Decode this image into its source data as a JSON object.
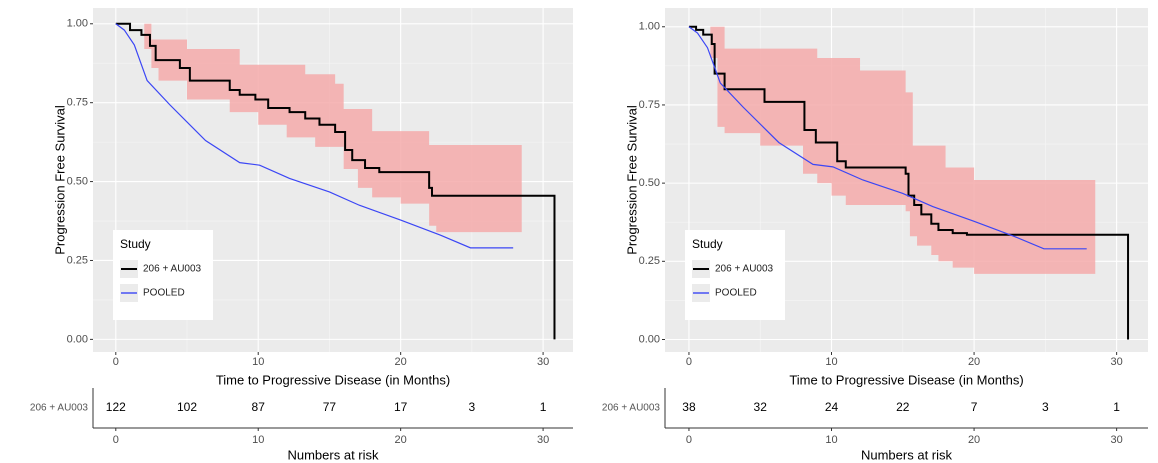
{
  "chart_data": [
    {
      "type": "km",
      "ylabel": "Progression Free Survival",
      "xlabel": "Time to Progressive Disease (in Months)",
      "xlim": [
        -1.6,
        32.1
      ],
      "ylim": [
        -0.04,
        1.05
      ],
      "xticks": [
        0,
        10,
        20,
        30
      ],
      "yticks": [
        {
          "value": 0,
          "label": "0.00"
        },
        {
          "value": 0.25,
          "label": "0.25"
        },
        {
          "value": 0.5,
          "label": "0.50"
        },
        {
          "value": 0.75,
          "label": "0.75"
        },
        {
          "value": 1,
          "label": "1.00"
        }
      ],
      "grid": true,
      "legend": {
        "title": "Study",
        "position": "bottom-left"
      },
      "ci_band": {
        "color": "#f4aaaa",
        "x": [
          0,
          2,
          2.5,
          3,
          4.5,
          5,
          8,
          8.7,
          10,
          12,
          13.3,
          14,
          15.4,
          16,
          17,
          18,
          20,
          22,
          22.5,
          28.5
        ],
        "upper": [
          1.0,
          1.0,
          0.95,
          0.95,
          0.95,
          0.92,
          0.92,
          0.87,
          0.87,
          0.87,
          0.84,
          0.84,
          0.81,
          0.73,
          0.73,
          0.66,
          0.66,
          0.616,
          0.616,
          0.616
        ],
        "lower": [
          1.0,
          0.92,
          0.86,
          0.82,
          0.82,
          0.76,
          0.72,
          0.72,
          0.68,
          0.64,
          0.64,
          0.61,
          0.61,
          0.54,
          0.48,
          0.45,
          0.43,
          0.36,
          0.34,
          0.34
        ]
      },
      "series": [
        {
          "name": "206 + AU003",
          "color": "#000000",
          "step": true,
          "x": [
            0,
            1,
            1.8,
            2.4,
            2.8,
            4.5,
            5.2,
            8.0,
            8.7,
            9.8,
            10.7,
            12.2,
            13.3,
            14.3,
            15.4,
            16.1,
            16.6,
            17.5,
            18.5,
            22.0,
            22.2,
            30.8
          ],
          "values": [
            1.0,
            0.98,
            0.965,
            0.93,
            0.885,
            0.86,
            0.82,
            0.79,
            0.775,
            0.76,
            0.733,
            0.72,
            0.7,
            0.68,
            0.657,
            0.6,
            0.568,
            0.543,
            0.53,
            0.48,
            0.455,
            0.0
          ]
        },
        {
          "name": "POOLED",
          "color": "#3b46f5",
          "step": false,
          "x": [
            0,
            0.6,
            1.3,
            2.2,
            3.8,
            6.3,
            8.7,
            10.1,
            12.2,
            15,
            17.1,
            20,
            22.8,
            24.9,
            27.9
          ],
          "values": [
            1.0,
            0.98,
            0.933,
            0.82,
            0.743,
            0.63,
            0.56,
            0.552,
            0.51,
            0.467,
            0.425,
            0.378,
            0.33,
            0.29,
            0.29
          ]
        }
      ],
      "risk_table": {
        "label": "206 + AU003",
        "times": [
          0,
          5,
          10,
          15,
          20,
          25,
          30
        ],
        "counts": [
          122,
          102,
          87,
          77,
          17,
          3,
          1
        ],
        "xticks": [
          0,
          10,
          20,
          30
        ],
        "xlabel": "Numbers at risk"
      }
    },
    {
      "type": "km",
      "ylabel": "Progression Free Survival",
      "xlabel": "Time to Progressive Disease (in Months)",
      "xlim": [
        -1.68,
        32.2
      ],
      "ylim": [
        -0.04,
        1.06
      ],
      "xticks": [
        0,
        10,
        20,
        30
      ],
      "yticks": [
        {
          "value": 0,
          "label": "0.00"
        },
        {
          "value": 0.25,
          "label": "0.25"
        },
        {
          "value": 0.5,
          "label": "0.50"
        },
        {
          "value": 0.75,
          "label": "0.75"
        },
        {
          "value": 1,
          "label": "1.00"
        }
      ],
      "grid": true,
      "legend": {
        "title": "Study",
        "position": "bottom-left"
      },
      "ci_band": {
        "color": "#f4aaaa",
        "x": [
          0,
          1.5,
          2,
          2.5,
          5,
          8,
          9,
          10,
          11,
          12,
          15.2,
          15.5,
          15.7,
          16,
          17,
          17.5,
          18,
          18.5,
          20,
          28.5
        ],
        "upper": [
          1.0,
          1.0,
          1.0,
          0.93,
          0.93,
          0.93,
          0.9,
          0.9,
          0.9,
          0.86,
          0.79,
          0.79,
          0.62,
          0.62,
          0.62,
          0.62,
          0.55,
          0.55,
          0.51,
          0.51
        ],
        "lower": [
          1.0,
          0.9,
          0.68,
          0.66,
          0.62,
          0.53,
          0.5,
          0.46,
          0.43,
          0.43,
          0.41,
          0.33,
          0.33,
          0.3,
          0.27,
          0.25,
          0.25,
          0.23,
          0.21,
          0.21
        ]
      },
      "series": [
        {
          "name": "206 + AU003",
          "color": "#000000",
          "step": true,
          "x": [
            0,
            0.5,
            1,
            1.6,
            1.8,
            2.5,
            5.3,
            8.1,
            8.9,
            10.4,
            11.0,
            15.2,
            15.4,
            15.8,
            16.3,
            17.0,
            17.5,
            18.5,
            19.5,
            30.8
          ],
          "values": [
            1.0,
            0.99,
            0.975,
            0.945,
            0.85,
            0.8,
            0.76,
            0.67,
            0.63,
            0.57,
            0.55,
            0.53,
            0.46,
            0.43,
            0.4,
            0.37,
            0.35,
            0.34,
            0.335,
            0.0
          ]
        },
        {
          "name": "POOLED",
          "color": "#3b46f5",
          "step": false,
          "x": [
            0,
            0.6,
            1.3,
            2.2,
            3.8,
            6.3,
            8.7,
            10.1,
            12.2,
            15,
            17.1,
            20,
            22.8,
            24.9,
            27.9
          ],
          "values": [
            1.0,
            0.98,
            0.933,
            0.82,
            0.743,
            0.63,
            0.56,
            0.552,
            0.51,
            0.467,
            0.425,
            0.378,
            0.33,
            0.29,
            0.29
          ]
        }
      ],
      "risk_table": {
        "label": "206 + AU003",
        "times": [
          0,
          5,
          10,
          15,
          20,
          25,
          30
        ],
        "counts": [
          38,
          32,
          24,
          22,
          7,
          3,
          1
        ],
        "xticks": [
          0,
          10,
          20,
          30
        ],
        "xlabel": "Numbers at risk"
      }
    }
  ]
}
